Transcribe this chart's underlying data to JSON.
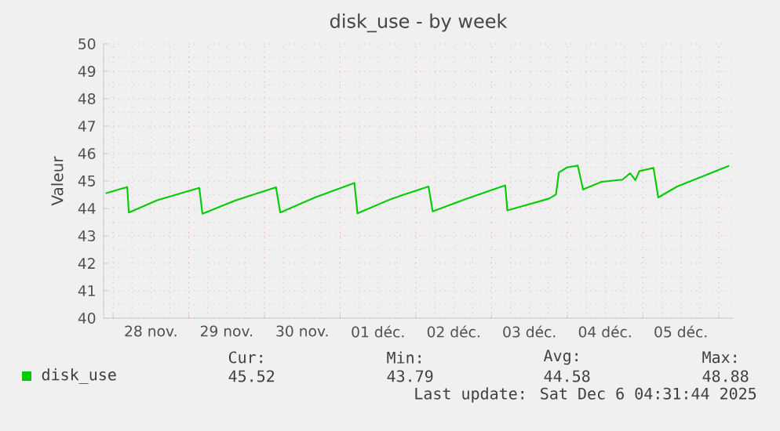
{
  "chart_data": {
    "type": "line",
    "title": "disk_use - by week",
    "ylabel": "Valeur",
    "xlim": [
      "2025-11-27T21:00",
      "2025-12-06T04:30"
    ],
    "xticks": [
      {
        "value": "2025-11-28T00:00",
        "label": null
      },
      {
        "value": "2025-11-28T12:00",
        "label": "28 nov."
      },
      {
        "value": "2025-11-29T00:00",
        "label": null
      },
      {
        "value": "2025-11-29T12:00",
        "label": "29 nov."
      },
      {
        "value": "2025-11-30T00:00",
        "label": null
      },
      {
        "value": "2025-11-30T12:00",
        "label": "30 nov."
      },
      {
        "value": "2025-12-01T00:00",
        "label": null
      },
      {
        "value": "2025-12-01T12:00",
        "label": "01 déc."
      },
      {
        "value": "2025-12-02T00:00",
        "label": null
      },
      {
        "value": "2025-12-02T12:00",
        "label": "02 déc."
      },
      {
        "value": "2025-12-03T00:00",
        "label": null
      },
      {
        "value": "2025-12-03T12:00",
        "label": "03 déc."
      },
      {
        "value": "2025-12-04T00:00",
        "label": null
      },
      {
        "value": "2025-12-04T12:00",
        "label": "04 déc."
      },
      {
        "value": "2025-12-05T00:00",
        "label": null
      },
      {
        "value": "2025-12-05T12:00",
        "label": "05 déc."
      },
      {
        "value": "2025-12-06T00:00",
        "label": null
      }
    ],
    "ylim": [
      40,
      50
    ],
    "yticks": [
      40,
      41,
      42,
      43,
      44,
      45,
      46,
      47,
      48,
      49,
      50
    ],
    "grid": true,
    "legend": "bottom left",
    "marker": "none",
    "line_style": "solid",
    "x": [
      "2025-11-27T21:40",
      "2025-11-28T02:00",
      "2025-11-28T04:30",
      "2025-11-28T05:00",
      "2025-11-28T14:00",
      "2025-11-29T03:20",
      "2025-11-29T04:20",
      "2025-11-29T15:00",
      "2025-11-30T03:40",
      "2025-11-30T05:00",
      "2025-11-30T16:00",
      "2025-12-01T04:30",
      "2025-12-01T05:30",
      "2025-12-01T16:30",
      "2025-12-02T04:00",
      "2025-12-02T05:20",
      "2025-12-02T16:00",
      "2025-12-03T04:20",
      "2025-12-03T05:00",
      "2025-12-03T18:15",
      "2025-12-03T20:25",
      "2025-12-03T21:20",
      "2025-12-04T00:00",
      "2025-12-04T03:20",
      "2025-12-04T05:00",
      "2025-12-04T10:50",
      "2025-12-04T17:30",
      "2025-12-04T19:55",
      "2025-12-04T21:35",
      "2025-12-04T22:50",
      "2025-12-05T03:20",
      "2025-12-05T04:50",
      "2025-12-05T10:50",
      "2025-12-06T03:20"
    ],
    "series": [
      {
        "name": "disk_use",
        "color": "#00cc00",
        "values": [
          44.55,
          44.7,
          44.78,
          43.85,
          44.3,
          44.75,
          43.81,
          44.3,
          44.77,
          43.85,
          44.4,
          44.93,
          43.82,
          44.36,
          44.8,
          43.89,
          44.35,
          44.84,
          43.93,
          44.36,
          44.51,
          45.31,
          45.5,
          45.56,
          44.69,
          44.97,
          45.05,
          45.28,
          45.03,
          45.36,
          45.48,
          44.4,
          44.8,
          45.56
        ]
      }
    ],
    "annotations": [
      "Cur:",
      "Min:",
      "Avg:",
      "Max:",
      "45.52",
      "43.79",
      "44.58",
      "48.88",
      "Last update: Sat Dec  6 04:31:44 2025"
    ]
  }
}
